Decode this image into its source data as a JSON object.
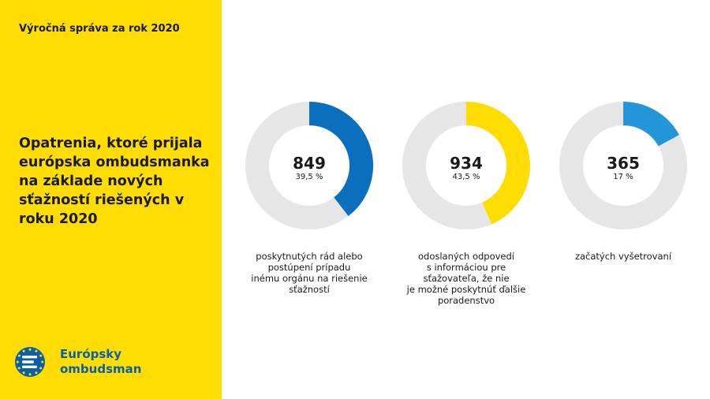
{
  "header": {
    "report_label": "Výročná správa za rok 2020"
  },
  "headline": {
    "lines": [
      "Opatrenia, ktoré prijala",
      "európska ombudsmanka",
      "na základe nových",
      "sťažností riešených v",
      "roku 2020"
    ]
  },
  "logo": {
    "lines": [
      "Európsky",
      "ombudsman"
    ]
  },
  "colors": {
    "sidebar": "#FFDD00",
    "track": "#E6E6E6",
    "seg1": "#0A6FBF",
    "seg2": "#FFDD00",
    "seg3": "#2395D8",
    "logo_blue": "#0A5FA8"
  },
  "chart_data": {
    "type": "pie",
    "variant": "donut",
    "items": [
      {
        "value": "849",
        "percent_label": "39,5 %",
        "percent": 39.5,
        "color": "#0A6FBF",
        "caption": [
          "poskytnutých rád alebo",
          "postúpení prípadu",
          "inému orgánu na riešenie",
          "sťažností"
        ]
      },
      {
        "value": "934",
        "percent_label": "43,5 %",
        "percent": 43.5,
        "color": "#FFDD00",
        "caption": [
          "odoslaných odpovedí",
          "s informáciou pre",
          "sťažovateľa, že nie",
          "je možné poskytnúť ďalšie",
          "poradenstvo"
        ]
      },
      {
        "value": "365",
        "percent_label": "17 %",
        "percent": 17,
        "color": "#2395D8",
        "caption": [
          "začatých vyšetrovaní"
        ]
      }
    ]
  }
}
